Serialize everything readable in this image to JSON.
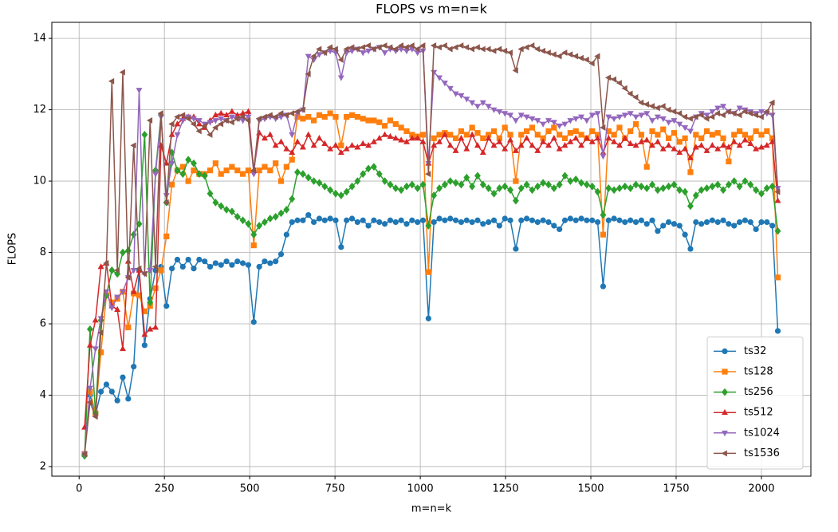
{
  "chart_data": {
    "type": "line",
    "title": "FLOPS vs m=n=k",
    "x_label": "m=n=k",
    "y_label": "FLOPS",
    "x": [
      16,
      32,
      48,
      64,
      80,
      96,
      112,
      128,
      144,
      160,
      176,
      192,
      208,
      224,
      240,
      256,
      272,
      288,
      304,
      320,
      336,
      352,
      368,
      384,
      400,
      416,
      432,
      448,
      464,
      480,
      496,
      512,
      528,
      544,
      560,
      576,
      592,
      608,
      624,
      640,
      656,
      672,
      688,
      704,
      720,
      736,
      752,
      768,
      784,
      800,
      816,
      832,
      848,
      864,
      880,
      896,
      912,
      928,
      944,
      960,
      976,
      992,
      1008,
      1024,
      1040,
      1056,
      1072,
      1088,
      1104,
      1120,
      1136,
      1152,
      1168,
      1184,
      1200,
      1216,
      1232,
      1248,
      1264,
      1280,
      1296,
      1312,
      1328,
      1344,
      1360,
      1376,
      1392,
      1408,
      1424,
      1440,
      1456,
      1472,
      1488,
      1504,
      1520,
      1536,
      1552,
      1568,
      1584,
      1600,
      1616,
      1632,
      1648,
      1664,
      1680,
      1696,
      1712,
      1728,
      1744,
      1760,
      1776,
      1792,
      1808,
      1824,
      1840,
      1856,
      1872,
      1888,
      1904,
      1920,
      1936,
      1952,
      1968,
      1984,
      2000,
      2016,
      2032,
      2048
    ],
    "series": [
      {
        "name": "ts32",
        "color": "#1f77b4",
        "marker": "circle",
        "values": [
          2.35,
          4.0,
          3.45,
          4.1,
          4.3,
          4.1,
          3.85,
          4.5,
          3.9,
          4.8,
          7.5,
          5.4,
          6.7,
          7.5,
          7.6,
          6.5,
          7.55,
          7.8,
          7.6,
          7.8,
          7.55,
          7.8,
          7.75,
          7.6,
          7.7,
          7.65,
          7.75,
          7.65,
          7.75,
          7.7,
          7.65,
          6.05,
          7.6,
          7.75,
          7.7,
          7.75,
          7.95,
          8.5,
          8.85,
          8.9,
          8.9,
          9.05,
          8.85,
          8.95,
          8.9,
          8.95,
          8.9,
          8.15,
          8.9,
          8.95,
          8.85,
          8.9,
          8.75,
          8.9,
          8.85,
          8.8,
          8.9,
          8.85,
          8.9,
          8.8,
          8.9,
          8.85,
          8.9,
          6.15,
          8.85,
          8.95,
          8.9,
          8.95,
          8.9,
          8.85,
          8.9,
          8.85,
          8.9,
          8.8,
          8.85,
          8.9,
          8.75,
          8.95,
          8.9,
          8.1,
          8.9,
          8.95,
          8.9,
          8.85,
          8.9,
          8.85,
          8.75,
          8.65,
          8.9,
          8.95,
          8.9,
          8.95,
          8.9,
          8.9,
          8.85,
          7.05,
          8.9,
          8.95,
          8.9,
          8.85,
          8.9,
          8.85,
          8.9,
          8.8,
          8.9,
          8.6,
          8.75,
          8.85,
          8.8,
          8.75,
          8.5,
          8.1,
          8.85,
          8.8,
          8.85,
          8.9,
          8.85,
          8.9,
          8.8,
          8.75,
          8.85,
          8.9,
          8.85,
          8.65,
          8.85,
          8.85,
          8.75,
          5.8
        ]
      },
      {
        "name": "ts128",
        "color": "#ff7f0e",
        "marker": "square",
        "values": [
          2.35,
          4.1,
          3.5,
          5.2,
          6.8,
          6.6,
          6.7,
          6.9,
          5.9,
          6.85,
          6.8,
          6.35,
          6.5,
          7.0,
          7.5,
          8.45,
          9.9,
          10.3,
          10.4,
          10.0,
          10.3,
          10.2,
          10.2,
          10.3,
          10.5,
          10.2,
          10.3,
          10.4,
          10.3,
          10.2,
          10.3,
          8.2,
          10.3,
          10.4,
          10.3,
          10.5,
          10.0,
          10.4,
          10.6,
          11.8,
          11.75,
          11.8,
          11.7,
          11.85,
          11.8,
          11.9,
          11.8,
          11.0,
          11.8,
          11.85,
          11.8,
          11.75,
          11.7,
          11.7,
          11.65,
          11.55,
          11.7,
          11.6,
          11.5,
          11.4,
          11.3,
          11.25,
          11.3,
          7.45,
          11.2,
          11.3,
          11.35,
          11.3,
          11.2,
          11.4,
          11.3,
          11.5,
          11.35,
          11.2,
          11.3,
          11.4,
          11.2,
          11.5,
          11.3,
          10.0,
          11.3,
          11.4,
          11.5,
          11.3,
          11.2,
          11.4,
          11.5,
          11.3,
          11.2,
          11.35,
          11.4,
          11.3,
          11.2,
          11.4,
          11.3,
          8.5,
          11.4,
          11.3,
          11.5,
          11.2,
          11.4,
          11.6,
          11.3,
          10.4,
          11.4,
          11.3,
          11.45,
          11.2,
          11.35,
          11.1,
          11.2,
          10.25,
          11.3,
          11.2,
          11.4,
          11.3,
          11.35,
          11.2,
          10.55,
          11.3,
          11.4,
          11.3,
          11.2,
          11.4,
          11.3,
          11.4,
          11.2,
          7.3
        ]
      },
      {
        "name": "ts256",
        "color": "#2ca02c",
        "marker": "diamond",
        "values": [
          2.3,
          5.85,
          3.5,
          6.1,
          6.8,
          7.5,
          7.4,
          8.0,
          8.05,
          8.5,
          8.8,
          11.3,
          6.6,
          10.3,
          11.85,
          9.4,
          10.8,
          10.3,
          10.2,
          10.6,
          10.5,
          10.2,
          10.15,
          9.65,
          9.4,
          9.3,
          9.2,
          9.15,
          9.0,
          8.9,
          8.8,
          8.5,
          8.75,
          8.85,
          8.95,
          9.0,
          9.1,
          9.2,
          9.5,
          10.25,
          10.2,
          10.1,
          10.0,
          9.95,
          9.85,
          9.75,
          9.65,
          9.6,
          9.7,
          9.85,
          10.0,
          10.2,
          10.35,
          10.4,
          10.2,
          10.0,
          9.9,
          9.8,
          9.75,
          9.85,
          9.9,
          9.8,
          9.9,
          8.75,
          9.6,
          9.8,
          9.9,
          10.0,
          9.95,
          9.9,
          10.1,
          9.85,
          10.15,
          9.9,
          9.8,
          9.65,
          9.8,
          9.85,
          9.75,
          9.45,
          9.8,
          9.9,
          9.75,
          9.85,
          9.95,
          9.9,
          9.8,
          9.9,
          10.15,
          10.0,
          10.05,
          9.95,
          9.9,
          9.85,
          9.7,
          9.05,
          9.8,
          9.75,
          9.8,
          9.85,
          9.8,
          9.9,
          9.85,
          9.8,
          9.9,
          9.75,
          9.8,
          9.85,
          9.9,
          9.75,
          9.7,
          9.3,
          9.6,
          9.75,
          9.8,
          9.85,
          9.9,
          9.75,
          9.9,
          10.0,
          9.85,
          10.0,
          9.9,
          9.75,
          9.65,
          9.8,
          9.85,
          8.6
        ]
      },
      {
        "name": "ts512",
        "color": "#d62728",
        "marker": "triangle-up",
        "values": [
          3.1,
          5.4,
          6.1,
          7.6,
          7.7,
          6.5,
          6.4,
          5.3,
          7.75,
          6.9,
          7.5,
          5.7,
          5.85,
          5.9,
          11.0,
          10.5,
          11.3,
          11.6,
          11.75,
          11.8,
          11.8,
          11.6,
          11.5,
          11.7,
          11.85,
          11.9,
          11.85,
          11.95,
          11.85,
          11.9,
          11.95,
          10.3,
          11.35,
          11.2,
          11.3,
          11.0,
          11.1,
          10.9,
          10.8,
          11.1,
          10.95,
          11.3,
          11.0,
          11.2,
          11.05,
          10.9,
          11.0,
          10.8,
          10.9,
          11.0,
          10.95,
          11.05,
          11.0,
          11.1,
          11.2,
          11.3,
          11.25,
          11.2,
          11.15,
          11.1,
          11.2,
          11.2,
          11.1,
          10.5,
          11.0,
          11.1,
          11.3,
          11.0,
          10.85,
          11.2,
          10.9,
          11.3,
          11.0,
          10.8,
          11.2,
          11.0,
          11.1,
          10.9,
          11.15,
          10.85,
          11.0,
          11.2,
          11.0,
          10.85,
          11.1,
          11.0,
          11.2,
          10.9,
          11.0,
          11.1,
          11.2,
          11.0,
          11.2,
          11.1,
          11.2,
          10.8,
          11.2,
          11.1,
          11.0,
          11.2,
          11.05,
          11.0,
          11.1,
          11.15,
          11.0,
          11.1,
          10.9,
          11.0,
          10.9,
          10.8,
          10.9,
          10.65,
          10.95,
          11.0,
          10.85,
          11.0,
          10.9,
          11.0,
          10.95,
          11.1,
          11.0,
          11.15,
          11.05,
          10.9,
          10.95,
          11.0,
          11.1,
          9.45
        ]
      },
      {
        "name": "ts1024",
        "color": "#9467bd",
        "marker": "triangle-down",
        "values": [
          2.35,
          4.2,
          5.3,
          6.15,
          6.9,
          6.45,
          6.75,
          6.9,
          7.3,
          7.5,
          12.55,
          7.4,
          7.5,
          10.2,
          11.8,
          9.6,
          10.5,
          11.3,
          11.7,
          11.8,
          11.75,
          11.7,
          11.6,
          11.65,
          11.7,
          11.75,
          11.7,
          11.8,
          11.75,
          11.7,
          11.8,
          10.2,
          11.7,
          11.75,
          11.8,
          11.75,
          11.8,
          11.85,
          11.3,
          11.9,
          12.0,
          13.5,
          13.4,
          13.55,
          13.6,
          13.65,
          13.6,
          12.9,
          13.6,
          13.65,
          13.7,
          13.6,
          13.65,
          13.7,
          13.75,
          13.6,
          13.7,
          13.65,
          13.7,
          13.65,
          13.7,
          13.6,
          13.65,
          10.5,
          13.05,
          12.9,
          12.75,
          12.6,
          12.45,
          12.4,
          12.3,
          12.2,
          12.1,
          12.2,
          12.1,
          12.0,
          11.95,
          11.9,
          11.85,
          11.7,
          11.85,
          11.8,
          11.75,
          11.7,
          11.6,
          11.7,
          11.65,
          11.55,
          11.6,
          11.7,
          11.75,
          11.8,
          11.7,
          11.85,
          11.9,
          10.7,
          11.8,
          11.75,
          11.8,
          11.85,
          11.9,
          11.8,
          11.85,
          11.9,
          11.7,
          11.8,
          11.75,
          11.65,
          11.7,
          11.6,
          11.5,
          11.4,
          11.8,
          11.9,
          11.85,
          11.95,
          12.05,
          12.1,
          11.95,
          11.9,
          12.05,
          12.0,
          11.95,
          11.9,
          11.95,
          11.9,
          11.85,
          9.8
        ]
      },
      {
        "name": "ts1536",
        "color": "#8c564b",
        "marker": "triangle-left",
        "values": [
          2.35,
          3.8,
          3.4,
          5.75,
          7.7,
          12.8,
          7.5,
          13.05,
          7.3,
          11.0,
          7.55,
          7.4,
          11.7,
          7.6,
          11.9,
          9.4,
          11.6,
          11.8,
          11.85,
          11.75,
          11.6,
          11.4,
          11.55,
          11.3,
          11.5,
          11.6,
          11.7,
          11.65,
          11.75,
          11.8,
          11.7,
          10.3,
          11.75,
          11.8,
          11.85,
          11.8,
          11.9,
          11.85,
          11.9,
          11.95,
          12.0,
          13.0,
          13.5,
          13.7,
          13.6,
          13.75,
          13.7,
          13.4,
          13.7,
          13.75,
          13.7,
          13.75,
          13.8,
          13.7,
          13.75,
          13.8,
          13.75,
          13.7,
          13.8,
          13.75,
          13.8,
          13.7,
          13.8,
          10.2,
          13.8,
          13.75,
          13.8,
          13.7,
          13.75,
          13.8,
          13.75,
          13.7,
          13.75,
          13.7,
          13.7,
          13.65,
          13.7,
          13.65,
          13.6,
          13.1,
          13.7,
          13.75,
          13.8,
          13.7,
          13.65,
          13.6,
          13.55,
          13.5,
          13.6,
          13.55,
          13.5,
          13.45,
          13.4,
          13.3,
          13.5,
          11.5,
          12.9,
          12.85,
          12.75,
          12.6,
          12.45,
          12.35,
          12.2,
          12.15,
          12.1,
          12.05,
          12.1,
          12.0,
          11.95,
          11.9,
          11.8,
          11.75,
          11.8,
          11.85,
          11.75,
          11.8,
          11.9,
          11.85,
          11.95,
          11.9,
          11.85,
          11.95,
          11.9,
          11.85,
          11.8,
          11.95,
          12.2,
          9.7
        ]
      }
    ],
    "xlim": [
      -80,
      2145
    ],
    "ylim": [
      1.73,
      14.45
    ],
    "xticks": [
      0,
      250,
      500,
      750,
      1000,
      1250,
      1500,
      1750,
      2000
    ],
    "yticks": [
      2,
      4,
      6,
      8,
      10,
      12,
      14
    ],
    "grid": true,
    "legend": "lower right"
  }
}
